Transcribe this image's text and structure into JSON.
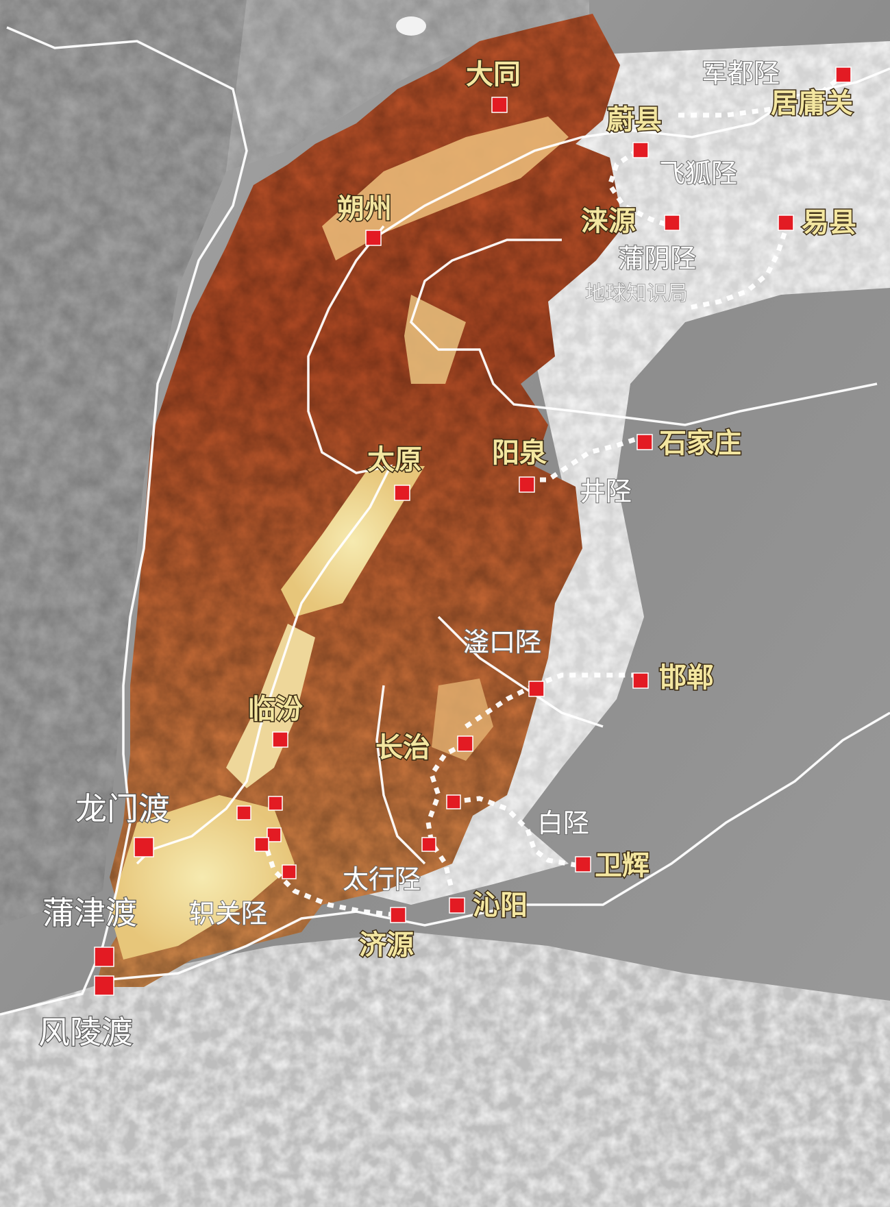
{
  "colors": {
    "plateau_low": "#f3e7a4",
    "plateau_mid": "#d98a4e",
    "plateau_high": "#9b3a1c",
    "plain": "#8c8c8c",
    "mountain_light": "#e8e8e8",
    "marker": "#e31b23",
    "route": "#ffffff",
    "city_text": "#f3e6a0"
  },
  "labels": {
    "datong": "大同",
    "shuozhou": "朔州",
    "weixian": "蔚县",
    "juyongguan": "居庸关",
    "laiyuan": "涞源",
    "yixian": "易县",
    "taiyuan": "太原",
    "yangquan": "阳泉",
    "shijiazhuang": "石家庄",
    "handan": "邯郸",
    "linfen": "临汾",
    "changzhi": "长治",
    "weihui": "卫辉",
    "qinyang": "沁阳",
    "jiyuan": "济源",
    "jundu_xing": "军都陉",
    "feihu_xing": "飞狐陉",
    "puyin_xing": "蒲阴陉",
    "jing_xing": "井陉",
    "fukou_xing": "滏口陉",
    "bai_xing": "白陉",
    "taihang_xing": "太行陉",
    "zhiguan_xing": "轵关陉",
    "longmen_du": "龙门渡",
    "pujin_du": "蒲津渡",
    "fengling_du": "风陵渡",
    "watermark": "地球知识局"
  }
}
